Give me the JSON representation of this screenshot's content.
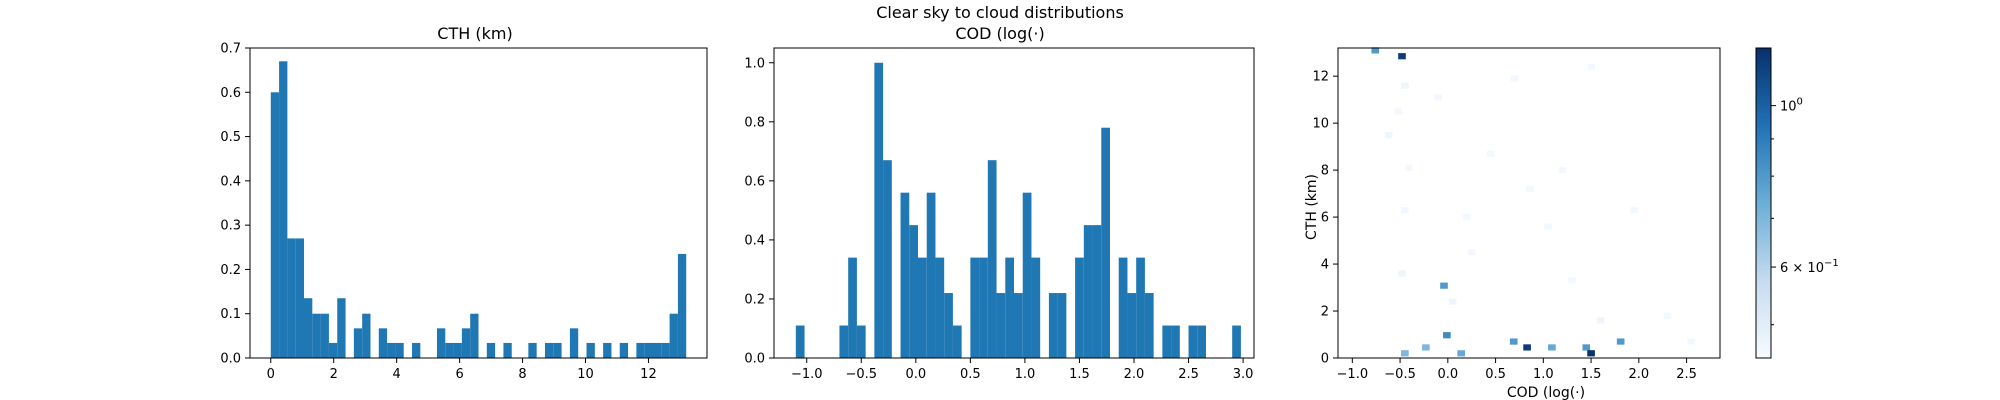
{
  "figure": {
    "suptitle": "Clear sky to cloud distributions",
    "colors": {
      "bar": "#1f77b4",
      "axis": "#000000"
    }
  },
  "chart_data": [
    {
      "type": "bar",
      "title": "CTH (km)",
      "xlabel": "",
      "ylabel": "",
      "xlim": [
        -0.66,
        13.86
      ],
      "ylim": [
        0,
        0.7
      ],
      "xticks": [
        0,
        2,
        4,
        6,
        8,
        10,
        12
      ],
      "xtick_labels": [
        "0",
        "2",
        "4",
        "6",
        "8",
        "10",
        "12"
      ],
      "yticks": [
        0.0,
        0.1,
        0.2,
        0.3,
        0.4,
        0.5,
        0.6,
        0.7
      ],
      "ytick_labels": [
        "0.0",
        "0.1",
        "0.2",
        "0.3",
        "0.4",
        "0.5",
        "0.6",
        "0.7"
      ],
      "bin_edges_start": 0.0,
      "bin_width": 0.264,
      "values": [
        0.6,
        0.67,
        0.27,
        0.27,
        0.135,
        0.1,
        0.1,
        0.034,
        0.135,
        0,
        0.067,
        0.1,
        0,
        0.067,
        0.034,
        0.034,
        0,
        0.034,
        0,
        0,
        0.067,
        0.034,
        0.034,
        0.067,
        0.1,
        0,
        0.034,
        0,
        0.034,
        0,
        0,
        0.034,
        0,
        0.034,
        0.034,
        0,
        0.067,
        0,
        0.034,
        0,
        0.034,
        0,
        0.034,
        0,
        0.034,
        0.034,
        0.034,
        0.034,
        0.1,
        0.235
      ]
    },
    {
      "type": "bar",
      "title": "COD (log(·)",
      "xlabel": "",
      "ylabel": "",
      "xlim": [
        -1.3,
        3.1
      ],
      "ylim": [
        0,
        1.05
      ],
      "xticks": [
        -1.0,
        -0.5,
        0.0,
        0.5,
        1.0,
        1.5,
        2.0,
        2.5,
        3.0
      ],
      "xtick_labels": [
        "−1.0",
        "−0.5",
        "0.0",
        "0.5",
        "1.0",
        "1.5",
        "2.0",
        "2.5",
        "3.0"
      ],
      "yticks": [
        0.0,
        0.2,
        0.4,
        0.6,
        0.8,
        1.0
      ],
      "ytick_labels": [
        "0.0",
        "0.2",
        "0.4",
        "0.6",
        "0.8",
        "1.0"
      ],
      "bin_edges_start": -1.1,
      "bin_width": 0.08,
      "values": [
        0.11,
        0,
        0,
        0,
        0,
        0.11,
        0.34,
        0.11,
        0,
        1.0,
        0.67,
        0,
        0.56,
        0.45,
        0.34,
        0.56,
        0.34,
        0.22,
        0.11,
        0,
        0.34,
        0.34,
        0.67,
        0.22,
        0.34,
        0.22,
        0.56,
        0.34,
        0,
        0.22,
        0.22,
        0,
        0.34,
        0.45,
        0.45,
        0.78,
        0,
        0.34,
        0.22,
        0.34,
        0.22,
        0,
        0.11,
        0.11,
        0,
        0.11,
        0.11,
        0,
        0,
        0,
        0.11
      ]
    },
    {
      "type": "heatmap",
      "title": "",
      "xlabel": "COD (log(·)",
      "ylabel": "CTH (km)",
      "xlim": [
        -1.15,
        2.85
      ],
      "ylim": [
        0,
        13.2
      ],
      "xticks": [
        -1.0,
        -0.5,
        0.0,
        0.5,
        1.0,
        1.5,
        2.0,
        2.5
      ],
      "xtick_labels": [
        "−1.0",
        "−0.5",
        "0.0",
        "0.5",
        "1.0",
        "1.5",
        "2.0",
        "2.5"
      ],
      "yticks": [
        0,
        2,
        4,
        6,
        8,
        10,
        12
      ],
      "ytick_labels": [
        "0",
        "2",
        "4",
        "6",
        "8",
        "10",
        "12"
      ],
      "colormap": "Blues",
      "colorbar": {
        "scale": "log",
        "range": [
          0.45,
          1.2
        ],
        "ticks": [
          0.6,
          1.0
        ],
        "tick_labels": [
          "6 × 10",
          "10"
        ],
        "tick_label_exponents": [
          "−1",
          "0"
        ]
      },
      "cell_size": [
        0.08,
        0.264
      ],
      "cells": [
        {
          "x": -0.76,
          "y": 13.1,
          "v": 0.8
        },
        {
          "x": -0.48,
          "y": 12.85,
          "v": 1.15
        },
        {
          "x": -0.04,
          "y": 3.08,
          "v": 0.8
        },
        {
          "x": -0.01,
          "y": 0.97,
          "v": 0.85
        },
        {
          "x": -0.45,
          "y": 0.2,
          "v": 0.7
        },
        {
          "x": -0.23,
          "y": 0.45,
          "v": 0.7
        },
        {
          "x": 0.14,
          "y": 0.2,
          "v": 0.75
        },
        {
          "x": 0.69,
          "y": 0.7,
          "v": 0.8
        },
        {
          "x": 0.83,
          "y": 0.45,
          "v": 1.15
        },
        {
          "x": 1.09,
          "y": 0.45,
          "v": 0.75
        },
        {
          "x": 1.45,
          "y": 0.45,
          "v": 0.8
        },
        {
          "x": 1.5,
          "y": 0.2,
          "v": 1.2
        },
        {
          "x": 1.81,
          "y": 0.7,
          "v": 0.8
        },
        {
          "x": -0.62,
          "y": 9.5,
          "v": 0.47
        },
        {
          "x": -0.45,
          "y": 11.6,
          "v": 0.47
        },
        {
          "x": -0.41,
          "y": 8.1,
          "v": 0.46
        },
        {
          "x": -0.45,
          "y": 6.3,
          "v": 0.46
        },
        {
          "x": -0.48,
          "y": 3.6,
          "v": 0.47
        },
        {
          "x": -0.52,
          "y": 10.5,
          "v": 0.46
        },
        {
          "x": -0.1,
          "y": 11.1,
          "v": 0.46
        },
        {
          "x": 0.05,
          "y": 2.4,
          "v": 0.47
        },
        {
          "x": 0.25,
          "y": 4.5,
          "v": 0.46
        },
        {
          "x": 0.45,
          "y": 8.7,
          "v": 0.46
        },
        {
          "x": 0.7,
          "y": 11.9,
          "v": 0.46
        },
        {
          "x": 0.86,
          "y": 7.2,
          "v": 0.46
        },
        {
          "x": 1.05,
          "y": 5.6,
          "v": 0.46
        },
        {
          "x": 1.3,
          "y": 3.3,
          "v": 0.46
        },
        {
          "x": 1.5,
          "y": 12.4,
          "v": 0.46
        },
        {
          "x": 1.6,
          "y": 1.6,
          "v": 0.47
        },
        {
          "x": 1.95,
          "y": 6.3,
          "v": 0.46
        },
        {
          "x": 2.3,
          "y": 1.8,
          "v": 0.46
        },
        {
          "x": 2.55,
          "y": 0.7,
          "v": 0.46
        },
        {
          "x": 0.2,
          "y": 6.0,
          "v": 0.46
        },
        {
          "x": 1.2,
          "y": 8.0,
          "v": 0.46
        }
      ]
    }
  ]
}
